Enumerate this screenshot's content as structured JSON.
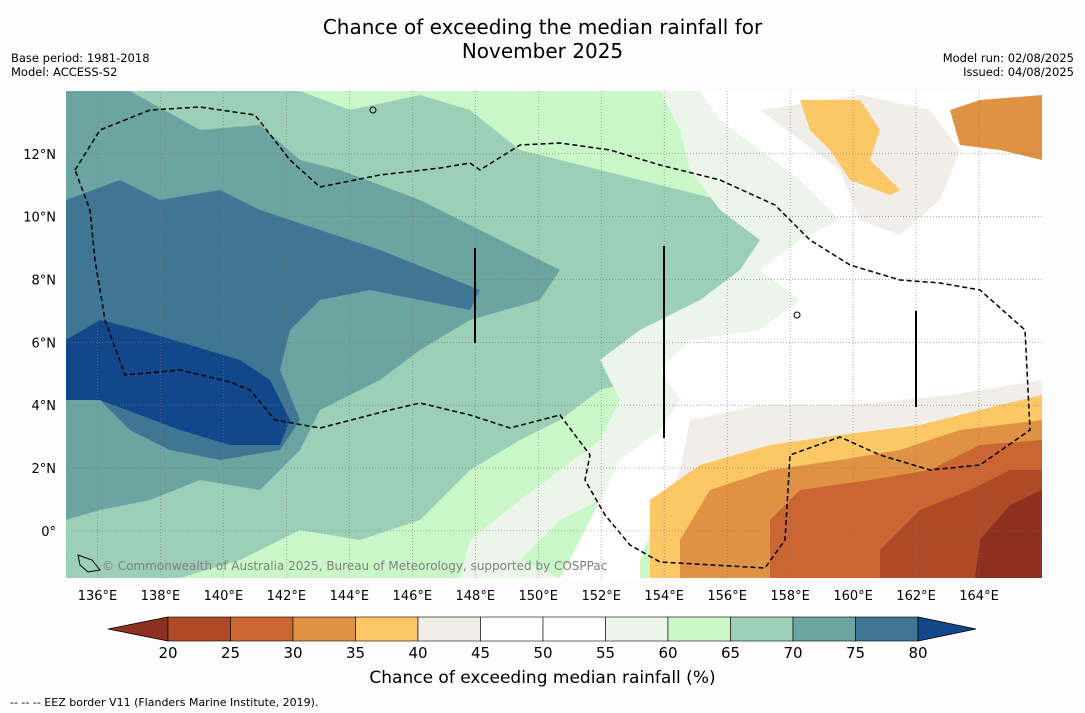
{
  "title_line1": "Chance of exceeding the median rainfall for",
  "title_line2": "November 2025",
  "meta_left": {
    "base_period": "Base period: 1981-2018",
    "model": "Model: ACCESS-S2"
  },
  "meta_right": {
    "model_run": "Model run: 02/08/2025",
    "issued": "Issued: 04/08/2025"
  },
  "map": {
    "lon_labels": [
      "136°E",
      "138°E",
      "140°E",
      "142°E",
      "144°E",
      "146°E",
      "148°E",
      "150°E",
      "152°E",
      "154°E",
      "156°E",
      "158°E",
      "160°E",
      "162°E",
      "164°E"
    ],
    "lat_labels": [
      "12°N",
      "10°N",
      "8°N",
      "6°N",
      "4°N",
      "2°N",
      "0°"
    ],
    "lon_range": [
      135,
      166
    ],
    "lat_range": [
      -1.5,
      14
    ],
    "grid": true,
    "watermark": "© Commonwealth of Australia 2025, Bureau of Meteorology, supported by COSPPac"
  },
  "colorbar": {
    "title": "Chance of exceeding median rainfall (%)",
    "ticks": [
      "20",
      "25",
      "30",
      "35",
      "40",
      "45",
      "50",
      "55",
      "60",
      "65",
      "70",
      "75",
      "80"
    ],
    "colors": [
      "#8e3020",
      "#ae4a26",
      "#cb6532",
      "#df9244",
      "#fcc765",
      "#f1ede8",
      "#ffffff",
      "#ffffff",
      "#ebf5ea",
      "#caf7c7",
      "#9ccfb7",
      "#6ca4a2",
      "#3e7693",
      "#12488b"
    ]
  },
  "footnote": "--  --  -- EEZ border V11 (Flanders Marine Institute, 2019)."
}
